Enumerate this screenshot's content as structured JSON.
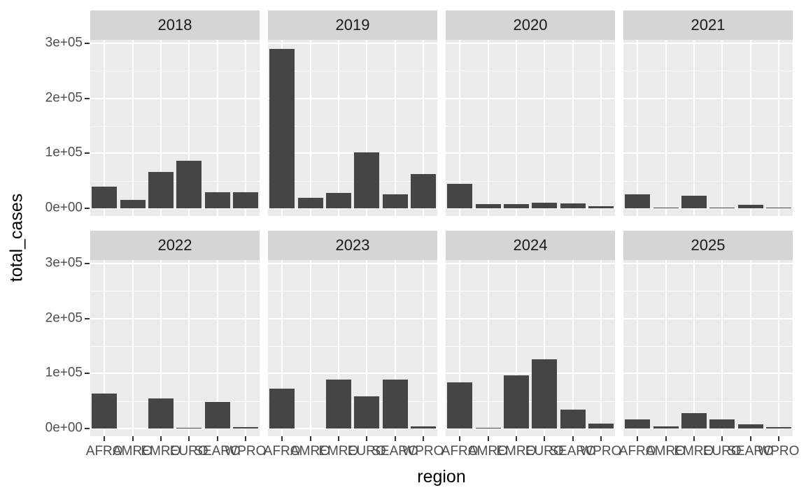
{
  "chart": {
    "y_tick_labels": [
      "0e+00",
      "1e+05",
      "2e+05",
      "3e+05"
    ]
  },
  "chart_data": {
    "type": "bar",
    "title": "",
    "xlabel": "region",
    "ylabel": "total_cases",
    "facet_by": "year",
    "categories": [
      "AFRO",
      "AMRO",
      "EMRO",
      "EURO",
      "SEARO",
      "WPRO"
    ],
    "ylim": [
      0,
      300000
    ],
    "y_major_ticks": [
      0,
      100000,
      200000,
      300000
    ],
    "y_minor_ticks": [
      50000,
      150000,
      250000
    ],
    "grid": "white on grey panel",
    "legend_position": "none",
    "facets": [
      {
        "label": "2018",
        "values": [
          40000,
          15000,
          66000,
          86000,
          29000,
          29000
        ]
      },
      {
        "label": "2019",
        "values": [
          290000,
          19000,
          28000,
          102000,
          26000,
          62000
        ]
      },
      {
        "label": "2020",
        "values": [
          45000,
          7000,
          7000,
          10000,
          9000,
          4000
        ]
      },
      {
        "label": "2021",
        "values": [
          25000,
          1000,
          23000,
          500,
          6000,
          1500
        ]
      },
      {
        "label": "2022",
        "values": [
          63000,
          0,
          55000,
          1500,
          48000,
          2000
        ]
      },
      {
        "label": "2023",
        "values": [
          72000,
          0,
          89000,
          58000,
          89000,
          4000
        ]
      },
      {
        "label": "2024",
        "values": [
          84000,
          1000,
          96000,
          126000,
          34000,
          9000
        ]
      },
      {
        "label": "2025",
        "values": [
          16000,
          4000,
          28000,
          16000,
          7000,
          2000
        ]
      }
    ],
    "colors": {
      "bar": "#454545",
      "panel_background": "#ebebeb",
      "strip_background": "#d5d5d5",
      "gridline": "#ffffff",
      "tick_text": "#4d4d4d",
      "axis_title_text": "#000000"
    }
  }
}
